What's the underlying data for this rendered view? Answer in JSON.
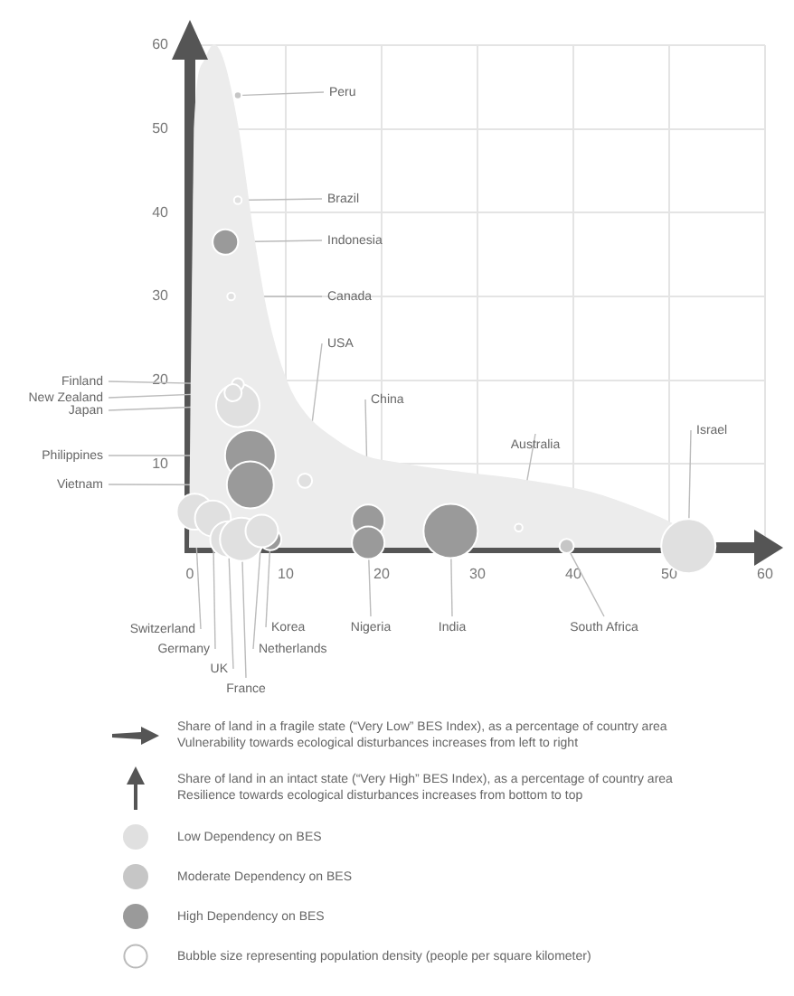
{
  "chart_data": {
    "type": "bubble",
    "series": [
      {
        "type": "area",
        "color": "#ececec",
        "x": [
          0,
          0.5,
          1.5,
          2.5,
          3.5,
          5,
          6.5,
          8,
          10,
          12,
          15,
          18,
          22,
          28,
          35,
          42,
          47,
          50,
          52,
          53
        ],
        "values": [
          0,
          50,
          58,
          60,
          58,
          50,
          38,
          28,
          20,
          16,
          13,
          11,
          10,
          9,
          8,
          6.5,
          4.5,
          3,
          1.5,
          0
        ]
      },
      {
        "name": "Low Dependency on BES",
        "color": "#e0e0e0",
        "x": [
          5,
          5,
          4.3,
          12,
          5,
          4.5,
          0.5,
          2.4,
          4,
          5.4,
          7.5,
          34.3,
          52
        ],
        "values": [
          17,
          41.5,
          30,
          8,
          19.5,
          18.5,
          4.3,
          3.5,
          1,
          1,
          2,
          2.4,
          0.2
        ],
        "sizes": [
          0.64,
          0.02,
          0.02,
          0.07,
          0.05,
          0.1,
          0.44,
          0.44,
          0.44,
          0.64,
          0.36,
          0.02,
          1
        ]
      },
      {
        "name": "Moderate Dependency on BES",
        "color": "#c6c6c6",
        "x": [
          5,
          39.3
        ],
        "values": [
          54,
          0.2
        ],
        "sizes": [
          0.02,
          0.07
        ]
      },
      {
        "name": "High Dependency on BES",
        "color": "#9a9a9a",
        "x": [
          3.7,
          6.3,
          6.3,
          8.4,
          18.6,
          18.6,
          27.2
        ],
        "values": [
          36.5,
          11,
          7.5,
          1,
          3.2,
          0.6,
          2
        ],
        "sizes": [
          0.22,
          0.87,
          0.75,
          0.16,
          0.36,
          0.36,
          1
        ]
      }
    ],
    "xlim": [
      0,
      60
    ],
    "ylim": [
      0,
      60
    ],
    "xticks": [
      0,
      10,
      20,
      30,
      40,
      50,
      60
    ],
    "yticks": [
      {
        "value": 0,
        "label": null
      },
      10,
      20,
      30,
      40,
      50,
      60
    ],
    "grid": true,
    "legend": "bottom",
    "annotations": [
      {
        "text": "Peru",
        "x": 5,
        "y": 54
      },
      {
        "text": "Brazil",
        "x": 5,
        "y": 41.5
      },
      {
        "text": "Indonesia",
        "x": 3.7,
        "y": 36.5
      },
      {
        "text": "Canada",
        "x": 4.3,
        "y": 30
      },
      {
        "text": "USA",
        "x": 12,
        "y": 8
      },
      {
        "text": "Finland",
        "x": 5,
        "y": 19.5
      },
      {
        "text": "New Zealand",
        "x": 4.5,
        "y": 18.5
      },
      {
        "text": "Japan",
        "x": 5,
        "y": 17
      },
      {
        "text": "Philippines",
        "x": 6.3,
        "y": 11
      },
      {
        "text": "Vietnam",
        "x": 6.3,
        "y": 7.5
      },
      {
        "text": "Switzerland",
        "x": 0.5,
        "y": 4.3
      },
      {
        "text": "Germany",
        "x": 2.4,
        "y": 3.5
      },
      {
        "text": "UK",
        "x": 4,
        "y": 1
      },
      {
        "text": "France",
        "x": 5.4,
        "y": 1
      },
      {
        "text": "Korea",
        "x": 8.4,
        "y": 1
      },
      {
        "text": "Netherlands",
        "x": 7.5,
        "y": 2
      },
      {
        "text": "China",
        "x": 18.6,
        "y": 3.2
      },
      {
        "text": "Nigeria",
        "x": 18.6,
        "y": 0.6
      },
      {
        "text": "India",
        "x": 27.2,
        "y": 2
      },
      {
        "text": "Australia",
        "x": 34.3,
        "y": 2.4
      },
      {
        "text": "South Africa",
        "x": 39.3,
        "y": 0.2
      },
      {
        "text": "Israel",
        "x": 52,
        "y": 0.2
      },
      "Share of land in a fragile state (“Very Low” BES Index), as a percentage of country area\nVulnerability towards ecological disturbances increases from left to right",
      "Share of land in an intact state (“Very High” BES Index), as a percentage of country area\nResilience towards ecological disturbances increases from bottom to top",
      "Bubble size representing population density (people per square kilometer)"
    ]
  }
}
